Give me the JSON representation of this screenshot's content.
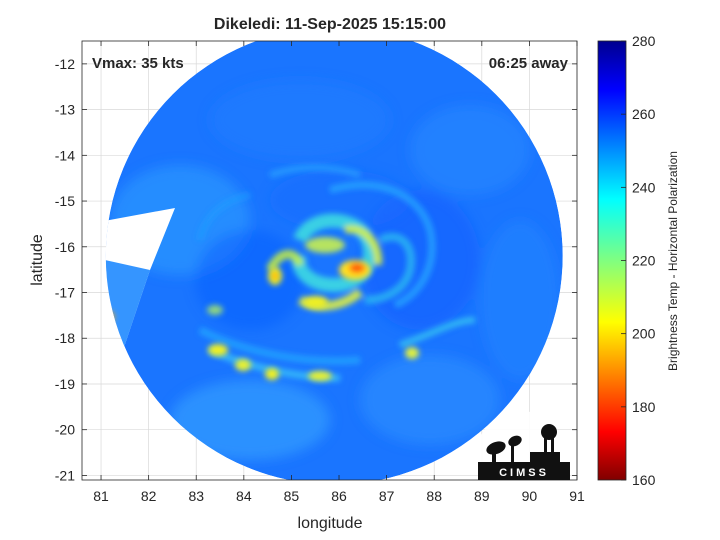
{
  "title": "Dikeledi: 11-Sep-2025 15:15:00",
  "vmax_label": "Vmax: 35 kts",
  "time_away_label": "06:25 away",
  "xlabel": "longitude",
  "ylabel": "latitude",
  "colorbar": {
    "label": "Brightness Temp - Horizontal Polarization",
    "min": 160,
    "max": 280,
    "ticks": [
      160,
      180,
      200,
      220,
      240,
      260,
      280
    ],
    "colormap": "jet"
  },
  "map": {
    "xlim": [
      80.6,
      91
    ],
    "ylim": [
      -21.1,
      -11.5
    ],
    "xticks": [
      81,
      82,
      83,
      84,
      85,
      86,
      87,
      88,
      89,
      90,
      91
    ],
    "yticks": [
      -12,
      -13,
      -14,
      -15,
      -16,
      -17,
      -18,
      -19,
      -20,
      -21
    ],
    "grid": true,
    "swath_center": [
      85.9,
      -16.2
    ],
    "swath_radius_deg": 5.0,
    "storm_center": [
      85.6,
      -16.2
    ],
    "background_temp": 255
  },
  "logo": {
    "text": "CIMSS"
  }
}
